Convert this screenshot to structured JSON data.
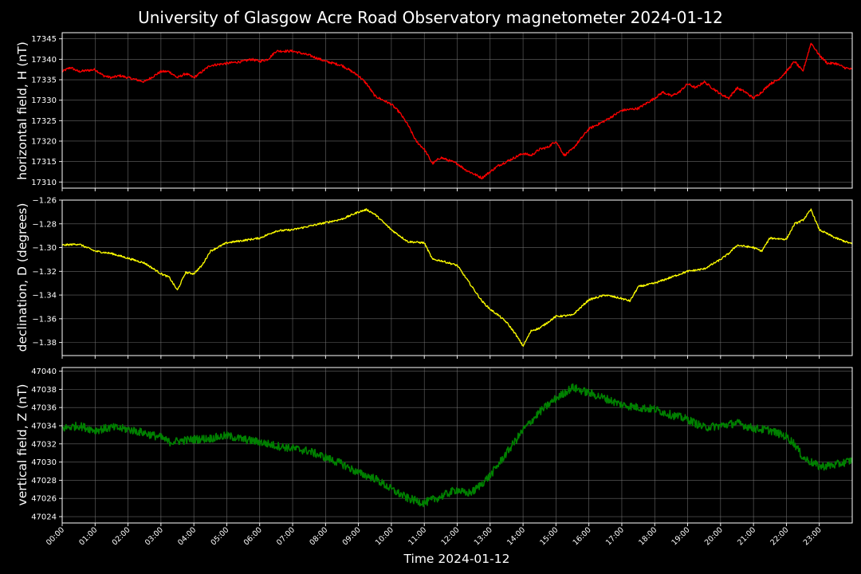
{
  "figure": {
    "title": "University of Glasgow Acre Road Observatory magnetometer 2024-01-12",
    "xlabel": "Time 2024-01-12"
  },
  "chart_data": [
    {
      "id": "h",
      "type": "line",
      "ylabel": "horizontal field, H (nT)",
      "color": "#ff0000",
      "ylim": [
        17308.5,
        17346.5
      ],
      "yticks": [
        17310,
        17315,
        17320,
        17325,
        17330,
        17335,
        17340,
        17345
      ],
      "ytick_labels": [
        "17310",
        "17315",
        "17320",
        "17325",
        "17330",
        "17335",
        "17340",
        "17345"
      ],
      "x_hours": [
        0,
        0.25,
        0.5,
        1,
        1.25,
        1.5,
        1.75,
        2,
        2.25,
        2.5,
        3,
        3.25,
        3.5,
        3.75,
        4,
        4.5,
        5,
        5.5,
        5.75,
        6,
        6.25,
        6.5,
        7,
        7.5,
        8,
        8.5,
        9,
        9.25,
        9.5,
        9.75,
        10,
        10.25,
        10.5,
        10.75,
        11,
        11.25,
        11.5,
        12,
        12.25,
        12.5,
        12.75,
        13,
        13.25,
        13.5,
        14,
        14.25,
        14.5,
        14.75,
        15,
        15.25,
        15.5,
        16,
        16.25,
        16.5,
        17,
        17.5,
        18,
        18.25,
        18.5,
        18.75,
        19,
        19.25,
        19.5,
        19.75,
        20,
        20.25,
        20.5,
        20.75,
        21,
        21.25,
        21.5,
        21.75,
        22,
        22.25,
        22.5,
        22.75,
        23,
        23.25,
        23.5,
        23.75,
        24
      ],
      "values": [
        17337,
        17338,
        17337,
        17337.5,
        17336,
        17335.5,
        17336,
        17335.5,
        17335,
        17334.5,
        17337,
        17337,
        17335.5,
        17336.5,
        17335.5,
        17338.5,
        17339,
        17339.5,
        17340,
        17339.5,
        17340,
        17342,
        17342,
        17341,
        17339.5,
        17338.5,
        17336,
        17334,
        17331,
        17330,
        17329,
        17327,
        17324,
        17320,
        17318,
        17314.5,
        17316,
        17314.5,
        17313,
        17312,
        17311,
        17312.5,
        17314,
        17315,
        17317,
        17316.5,
        17318,
        17318.5,
        17320,
        17316.5,
        17318,
        17323,
        17324,
        17325,
        17327.5,
        17328,
        17330.5,
        17332,
        17331,
        17332,
        17334,
        17333,
        17334.5,
        17333,
        17331.5,
        17330.5,
        17333,
        17332,
        17330.5,
        17332,
        17334,
        17335,
        17337,
        17339.5,
        17337,
        17344,
        17341,
        17339,
        17339,
        17338,
        17337.5
      ],
      "noise": 0.3
    },
    {
      "id": "d",
      "type": "line",
      "ylabel": "declination, D (degrees)",
      "color": "#ffff00",
      "ylim": [
        -1.391,
        -1.26
      ],
      "yticks": [
        -1.38,
        -1.36,
        -1.34,
        -1.32,
        -1.3,
        -1.28,
        -1.26
      ],
      "ytick_labels": [
        "−1.38",
        "−1.36",
        "−1.34",
        "−1.32",
        "−1.30",
        "−1.28",
        "−1.26"
      ],
      "x_hours": [
        0,
        0.5,
        1,
        1.5,
        2,
        2.5,
        3,
        3.25,
        3.5,
        3.75,
        4,
        4.25,
        4.5,
        5,
        5.5,
        6,
        6.5,
        7,
        7.5,
        8,
        8.5,
        9,
        9.25,
        9.5,
        10,
        10.25,
        10.5,
        11,
        11.25,
        11.5,
        12,
        12.25,
        12.5,
        12.75,
        13,
        13.25,
        13.5,
        13.75,
        14,
        14.25,
        14.5,
        15,
        15.5,
        16,
        16.25,
        16.5,
        17,
        17.25,
        17.5,
        18,
        18.5,
        19,
        19.5,
        20,
        20.25,
        20.5,
        21,
        21.25,
        21.5,
        22,
        22.25,
        22.5,
        22.75,
        23,
        23.5,
        24
      ],
      "values": [
        -1.298,
        -1.297,
        -1.303,
        -1.305,
        -1.309,
        -1.313,
        -1.322,
        -1.325,
        -1.336,
        -1.321,
        -1.322,
        -1.315,
        -1.303,
        -1.296,
        -1.294,
        -1.292,
        -1.286,
        -1.285,
        -1.282,
        -1.279,
        -1.276,
        -1.27,
        -1.268,
        -1.272,
        -1.285,
        -1.29,
        -1.295,
        -1.296,
        -1.31,
        -1.311,
        -1.315,
        -1.325,
        -1.335,
        -1.345,
        -1.352,
        -1.357,
        -1.363,
        -1.372,
        -1.383,
        -1.37,
        -1.368,
        -1.358,
        -1.357,
        -1.344,
        -1.342,
        -1.34,
        -1.343,
        -1.345,
        -1.333,
        -1.33,
        -1.325,
        -1.32,
        -1.318,
        -1.31,
        -1.305,
        -1.298,
        -1.3,
        -1.303,
        -1.292,
        -1.293,
        -1.28,
        -1.277,
        -1.268,
        -1.285,
        -1.292,
        -1.297
      ],
      "noise": 0.0008
    },
    {
      "id": "z",
      "type": "line",
      "ylabel": "vertical field, Z (nT)",
      "color": "#008000",
      "ylim": [
        47023.3,
        47040.4
      ],
      "yticks": [
        47024,
        47026,
        47028,
        47030,
        47032,
        47034,
        47036,
        47038,
        47040
      ],
      "ytick_labels": [
        "47024",
        "47026",
        "47028",
        "47030",
        "47032",
        "47034",
        "47036",
        "47038",
        "47040"
      ],
      "x_hours": [
        0,
        0.5,
        1,
        1.5,
        2,
        2.5,
        3,
        3.25,
        3.5,
        4,
        4.5,
        5,
        5.5,
        6,
        6.5,
        7,
        7.5,
        8,
        8.5,
        9,
        9.5,
        10,
        10.5,
        11,
        11.5,
        12,
        12.25,
        12.5,
        13,
        13.5,
        14,
        14.5,
        15,
        15.5,
        16,
        16.5,
        17,
        17.5,
        18,
        18.5,
        19,
        19.5,
        20,
        20.5,
        21,
        21.5,
        22,
        22.25,
        22.5,
        23,
        23.5,
        24
      ],
      "values": [
        47033.7,
        47034,
        47033.5,
        47033.8,
        47033.6,
        47033.2,
        47032.7,
        47032.2,
        47032.3,
        47032.5,
        47032.6,
        47032.9,
        47032.5,
        47032.2,
        47031.8,
        47031.5,
        47031.2,
        47030.5,
        47029.8,
        47028.8,
        47028.2,
        47027,
        47026,
        47025.5,
        47026.2,
        47027,
        47026.5,
        47026.8,
        47028.5,
        47031,
        47033.5,
        47035.5,
        47037,
        47038.2,
        47037.6,
        47037,
        47036.3,
        47036,
        47035.8,
        47035.2,
        47034.7,
        47033.8,
        47034,
        47034.3,
        47033.7,
        47033.5,
        47032.8,
        47032,
        47030.5,
        47029.5,
        47029.7,
        47030.2
      ],
      "noise": 0.45
    }
  ],
  "x_axis": {
    "xlim": [
      0,
      24
    ],
    "tick_labels": [
      "00:00",
      "01:00",
      "02:00",
      "03:00",
      "04:00",
      "05:00",
      "06:00",
      "07:00",
      "08:00",
      "09:00",
      "10:00",
      "11:00",
      "12:00",
      "13:00",
      "14:00",
      "15:00",
      "16:00",
      "17:00",
      "18:00",
      "19:00",
      "20:00",
      "21:00",
      "22:00",
      "23:00"
    ],
    "grid": true
  }
}
